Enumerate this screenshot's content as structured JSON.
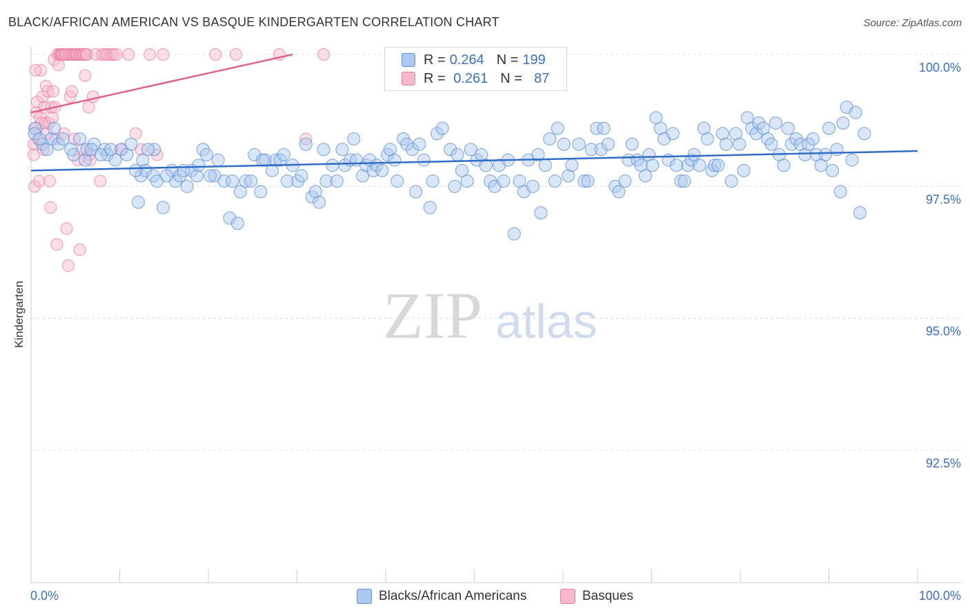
{
  "title": "BLACK/AFRICAN AMERICAN VS BASQUE KINDERGARTEN CORRELATION CHART",
  "source": "Source: ZipAtlas.com",
  "watermark": {
    "zip": "ZIP",
    "atlas": "atlas"
  },
  "legend": {
    "rows": [
      {
        "r_label": "R = ",
        "r_value": "0.264",
        "n_label": "N = ",
        "n_value": "199"
      },
      {
        "r_label": "R = ",
        "r_value": " 0.261",
        "n_label": "N = ",
        "n_value": "  87"
      }
    ]
  },
  "colors": {
    "blue_fill": "#aac8f0",
    "blue_stroke": "#5f93d6",
    "blue_line": "#2f6cc6",
    "pink_fill": "#f7b8cc",
    "pink_stroke": "#e87fa0",
    "pink_line": "#e0608a",
    "axis_text": "#3a6fc4",
    "grid": "#dddddd"
  },
  "chart_data": {
    "type": "scatter",
    "title": "BLACK/AFRICAN AMERICAN VS BASQUE KINDERGARTEN CORRELATION CHART",
    "xlabel": "",
    "ylabel": "Kindergarten",
    "xlim": [
      0,
      100
    ],
    "ylim": [
      90,
      100.5
    ],
    "x_tick_labels": [
      "0.0%",
      "100.0%"
    ],
    "y_ticks": [
      {
        "value": 100.0,
        "label": "100.0%"
      },
      {
        "value": 97.5,
        "label": "97.5%"
      },
      {
        "value": 95.0,
        "label": "95.0%"
      },
      {
        "value": 92.5,
        "label": "92.5%"
      }
    ],
    "grid": true,
    "series": [
      {
        "name": "Blacks/African Americans",
        "r": 0.264,
        "n": 199,
        "trend": {
          "x": [
            0,
            100
          ],
          "y": [
            97.8,
            98.17
          ]
        },
        "points": [
          [
            0.5,
            98.6
          ],
          [
            1.3,
            98.3
          ],
          [
            1.8,
            98.2
          ],
          [
            2.3,
            98.4
          ],
          [
            3.1,
            98.3
          ],
          [
            4.5,
            98.2
          ],
          [
            5.5,
            98.4
          ],
          [
            6.1,
            98.0
          ],
          [
            6.3,
            98.2
          ],
          [
            7.1,
            98.3
          ],
          [
            8.3,
            98.2
          ],
          [
            8.6,
            98.1
          ],
          [
            9.5,
            98.0
          ],
          [
            10.2,
            98.2
          ],
          [
            10.8,
            98.1
          ],
          [
            11.3,
            98.3
          ],
          [
            12.1,
            97.2
          ],
          [
            12.4,
            97.7
          ],
          [
            12.6,
            98.0
          ],
          [
            12.9,
            97.8
          ],
          [
            13.8,
            97.7
          ],
          [
            13.9,
            98.2
          ],
          [
            14.2,
            97.6
          ],
          [
            14.9,
            97.1
          ],
          [
            15.9,
            97.8
          ],
          [
            16.3,
            97.6
          ],
          [
            16.8,
            97.7
          ],
          [
            17.6,
            97.5
          ],
          [
            18.1,
            97.8
          ],
          [
            18.7,
            97.7
          ],
          [
            19.4,
            98.2
          ],
          [
            19.8,
            98.1
          ],
          [
            20.7,
            97.7
          ],
          [
            21.1,
            98.0
          ],
          [
            21.8,
            97.6
          ],
          [
            22.4,
            96.9
          ],
          [
            22.7,
            97.6
          ],
          [
            23.3,
            96.8
          ],
          [
            23.6,
            97.4
          ],
          [
            24.2,
            97.6
          ],
          [
            25.2,
            98.1
          ],
          [
            25.9,
            97.4
          ],
          [
            26.1,
            98.0
          ],
          [
            26.4,
            98.0
          ],
          [
            27.2,
            97.8
          ],
          [
            27.6,
            98.0
          ],
          [
            28.1,
            98.0
          ],
          [
            28.5,
            98.1
          ],
          [
            28.9,
            97.6
          ],
          [
            29.5,
            97.9
          ],
          [
            30.1,
            97.6
          ],
          [
            30.5,
            97.7
          ],
          [
            31.0,
            98.3
          ],
          [
            31.7,
            97.3
          ],
          [
            32.1,
            97.4
          ],
          [
            32.5,
            97.2
          ],
          [
            33.0,
            98.2
          ],
          [
            33.3,
            97.6
          ],
          [
            34.0,
            97.9
          ],
          [
            34.5,
            97.6
          ],
          [
            35.1,
            98.2
          ],
          [
            35.4,
            97.9
          ],
          [
            36.0,
            98.0
          ],
          [
            36.4,
            98.4
          ],
          [
            36.7,
            98.0
          ],
          [
            37.4,
            97.7
          ],
          [
            37.8,
            97.9
          ],
          [
            38.2,
            98.0
          ],
          [
            38.6,
            97.8
          ],
          [
            39.0,
            97.9
          ],
          [
            39.6,
            97.8
          ],
          [
            40.2,
            98.1
          ],
          [
            40.5,
            98.2
          ],
          [
            41.0,
            98.0
          ],
          [
            41.3,
            97.6
          ],
          [
            42.0,
            98.4
          ],
          [
            42.4,
            98.3
          ],
          [
            43.0,
            98.2
          ],
          [
            43.4,
            97.4
          ],
          [
            43.8,
            98.3
          ],
          [
            44.3,
            98.0
          ],
          [
            45.0,
            97.1
          ],
          [
            45.3,
            97.6
          ],
          [
            45.8,
            98.5
          ],
          [
            46.4,
            98.6
          ],
          [
            47.3,
            98.2
          ],
          [
            47.8,
            97.5
          ],
          [
            48.1,
            98.1
          ],
          [
            48.6,
            97.8
          ],
          [
            49.2,
            97.6
          ],
          [
            49.6,
            98.2
          ],
          [
            50.3,
            98.0
          ],
          [
            50.8,
            98.1
          ],
          [
            51.3,
            97.9
          ],
          [
            51.8,
            97.6
          ],
          [
            52.3,
            97.5
          ],
          [
            52.8,
            97.9
          ],
          [
            53.3,
            97.6
          ],
          [
            53.8,
            98.0
          ],
          [
            54.5,
            96.6
          ],
          [
            55.1,
            97.6
          ],
          [
            55.6,
            97.4
          ],
          [
            56.1,
            98.0
          ],
          [
            56.6,
            97.5
          ],
          [
            57.2,
            98.1
          ],
          [
            57.5,
            97.0
          ],
          [
            58.0,
            97.9
          ],
          [
            58.5,
            98.4
          ],
          [
            59.1,
            97.6
          ],
          [
            59.4,
            98.6
          ],
          [
            60.1,
            98.3
          ],
          [
            60.6,
            97.7
          ],
          [
            61.0,
            97.9
          ],
          [
            61.8,
            98.3
          ],
          [
            62.4,
            97.6
          ],
          [
            62.8,
            97.6
          ],
          [
            63.2,
            98.2
          ],
          [
            63.8,
            98.6
          ],
          [
            64.3,
            98.2
          ],
          [
            64.6,
            98.6
          ],
          [
            65.1,
            98.3
          ],
          [
            65.9,
            97.5
          ],
          [
            66.3,
            97.4
          ],
          [
            67.0,
            97.6
          ],
          [
            67.4,
            98.0
          ],
          [
            67.8,
            98.3
          ],
          [
            68.4,
            98.0
          ],
          [
            68.8,
            97.9
          ],
          [
            69.3,
            97.7
          ],
          [
            69.7,
            98.1
          ],
          [
            70.1,
            97.9
          ],
          [
            70.5,
            98.8
          ],
          [
            71.0,
            98.6
          ],
          [
            71.4,
            98.4
          ],
          [
            71.9,
            98.0
          ],
          [
            72.4,
            98.5
          ],
          [
            72.8,
            97.9
          ],
          [
            73.3,
            97.6
          ],
          [
            73.7,
            97.6
          ],
          [
            74.1,
            97.9
          ],
          [
            74.5,
            98.0
          ],
          [
            74.8,
            98.1
          ],
          [
            75.4,
            97.9
          ],
          [
            75.9,
            98.6
          ],
          [
            76.3,
            98.4
          ],
          [
            76.8,
            97.8
          ],
          [
            77.1,
            97.9
          ],
          [
            77.5,
            97.9
          ],
          [
            78.0,
            98.5
          ],
          [
            78.4,
            98.3
          ],
          [
            79.0,
            97.6
          ],
          [
            79.5,
            98.5
          ],
          [
            79.9,
            98.3
          ],
          [
            80.4,
            97.8
          ],
          [
            80.8,
            98.8
          ],
          [
            81.3,
            98.6
          ],
          [
            81.8,
            98.5
          ],
          [
            82.1,
            98.7
          ],
          [
            82.6,
            98.6
          ],
          [
            83.1,
            98.4
          ],
          [
            83.5,
            98.3
          ],
          [
            84.0,
            98.7
          ],
          [
            84.4,
            98.1
          ],
          [
            84.9,
            97.9
          ],
          [
            85.4,
            98.6
          ],
          [
            85.8,
            98.3
          ],
          [
            86.3,
            98.4
          ],
          [
            86.8,
            98.3
          ],
          [
            87.3,
            98.1
          ],
          [
            87.7,
            98.3
          ],
          [
            88.2,
            98.4
          ],
          [
            88.6,
            98.1
          ],
          [
            89.1,
            97.9
          ],
          [
            89.6,
            98.1
          ],
          [
            90.0,
            98.6
          ],
          [
            90.4,
            97.8
          ],
          [
            90.9,
            98.2
          ],
          [
            91.3,
            97.4
          ],
          [
            91.6,
            98.7
          ],
          [
            92.0,
            99.0
          ],
          [
            92.6,
            98.0
          ],
          [
            93.0,
            98.9
          ],
          [
            93.5,
            97.0
          ],
          [
            94.0,
            98.5
          ],
          [
            0.4,
            98.5
          ],
          [
            1.0,
            98.4
          ],
          [
            2.6,
            98.6
          ],
          [
            3.6,
            98.4
          ],
          [
            4.8,
            98.1
          ],
          [
            6.8,
            98.2
          ],
          [
            7.9,
            98.1
          ],
          [
            9.0,
            98.2
          ],
          [
            11.8,
            97.8
          ],
          [
            13.2,
            98.2
          ],
          [
            15.3,
            97.7
          ],
          [
            17.2,
            97.8
          ],
          [
            18.9,
            97.9
          ],
          [
            20.2,
            97.7
          ],
          [
            24.8,
            97.6
          ]
        ]
      },
      {
        "name": "Basques",
        "r": 0.261,
        "n": 87,
        "trend": {
          "x": [
            0,
            29.5
          ],
          "y": [
            98.9,
            100.0
          ]
        },
        "points": [
          [
            0.3,
            98.3
          ],
          [
            0.3,
            98.1
          ],
          [
            0.4,
            98.6
          ],
          [
            0.4,
            97.5
          ],
          [
            0.6,
            98.9
          ],
          [
            0.7,
            99.1
          ],
          [
            0.8,
            98.4
          ],
          [
            0.9,
            97.6
          ],
          [
            1.0,
            98.8
          ],
          [
            1.1,
            99.7
          ],
          [
            1.2,
            98.7
          ],
          [
            1.3,
            99.2
          ],
          [
            1.4,
            98.2
          ],
          [
            1.5,
            99.0
          ],
          [
            1.6,
            98.7
          ],
          [
            1.7,
            99.4
          ],
          [
            1.8,
            98.5
          ],
          [
            1.9,
            99.3
          ],
          [
            2.0,
            98.7
          ],
          [
            2.1,
            97.6
          ],
          [
            2.2,
            97.1
          ],
          [
            2.3,
            99.0
          ],
          [
            2.4,
            98.8
          ],
          [
            2.5,
            99.3
          ],
          [
            2.6,
            99.9
          ],
          [
            2.7,
            99.0
          ],
          [
            2.8,
            98.4
          ],
          [
            2.9,
            96.4
          ],
          [
            3.0,
            100.0
          ],
          [
            3.1,
            99.8
          ],
          [
            3.2,
            100.0
          ],
          [
            3.3,
            100.0
          ],
          [
            3.4,
            100.0
          ],
          [
            3.5,
            100.0
          ],
          [
            3.6,
            100.0
          ],
          [
            3.7,
            98.5
          ],
          [
            3.8,
            100.0
          ],
          [
            3.9,
            100.0
          ],
          [
            4.0,
            96.7
          ],
          [
            4.1,
            100.0
          ],
          [
            4.2,
            96.0
          ],
          [
            4.3,
            100.0
          ],
          [
            4.4,
            99.2
          ],
          [
            4.5,
            100.0
          ],
          [
            4.6,
            99.3
          ],
          [
            4.7,
            100.0
          ],
          [
            4.8,
            100.0
          ],
          [
            4.9,
            98.4
          ],
          [
            5.0,
            100.0
          ],
          [
            5.1,
            100.0
          ],
          [
            5.2,
            100.0
          ],
          [
            5.3,
            98.0
          ],
          [
            5.4,
            100.0
          ],
          [
            5.5,
            96.3
          ],
          [
            5.6,
            100.0
          ],
          [
            5.7,
            100.0
          ],
          [
            5.8,
            98.2
          ],
          [
            5.9,
            100.0
          ],
          [
            6.0,
            100.0
          ],
          [
            6.1,
            99.6
          ],
          [
            6.2,
            100.0
          ],
          [
            6.3,
            100.0
          ],
          [
            6.5,
            99.0
          ],
          [
            6.6,
            98.1
          ],
          [
            6.7,
            98.0
          ],
          [
            7.0,
            99.2
          ],
          [
            7.3,
            100.0
          ],
          [
            7.8,
            97.6
          ],
          [
            8.0,
            100.0
          ],
          [
            8.3,
            100.0
          ],
          [
            8.6,
            100.0
          ],
          [
            9.0,
            100.0
          ],
          [
            9.3,
            100.0
          ],
          [
            9.6,
            100.0
          ],
          [
            10.1,
            98.2
          ],
          [
            11.0,
            100.0
          ],
          [
            11.8,
            98.5
          ],
          [
            12.4,
            98.2
          ],
          [
            13.4,
            100.0
          ],
          [
            14.2,
            98.1
          ],
          [
            14.9,
            100.0
          ],
          [
            20.8,
            100.0
          ],
          [
            23.1,
            100.0
          ],
          [
            28.0,
            100.0
          ],
          [
            31.0,
            98.4
          ],
          [
            33.0,
            100.0
          ],
          [
            0.5,
            99.7
          ]
        ]
      }
    ]
  }
}
